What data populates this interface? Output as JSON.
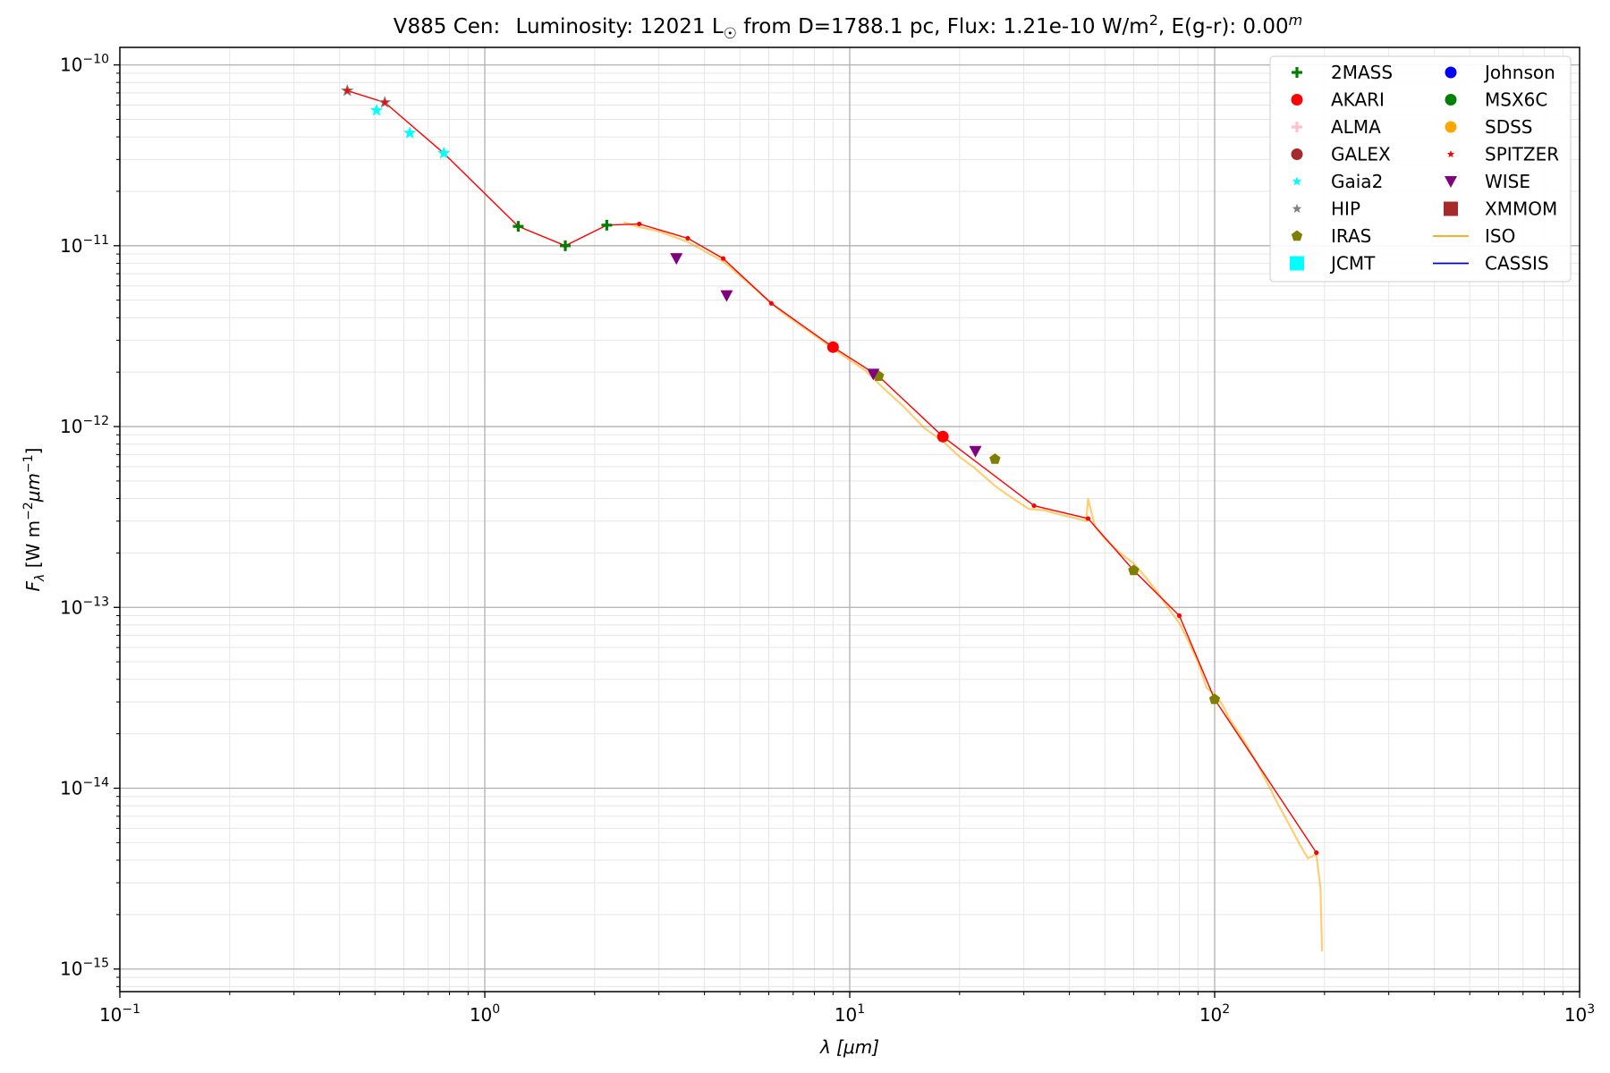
{
  "chart_data": {
    "type": "scatter",
    "title": {
      "star": "V885 Cen:",
      "lum_prefix": "Luminosity: 12021 L",
      "sun_symbol": "☉",
      "dist_flux": " from D=1788.1 pc, Flux: 1.21e-10 W/m",
      "flux_exp": "2",
      "ext": ", E(g-r): 0.00",
      "ext_sup": "m"
    },
    "xlabel": {
      "sym": "λ",
      "unit": " [μm]"
    },
    "ylabel": {
      "sym": "F",
      "sub": "λ",
      "unit": " [W m",
      "exp1": "−2",
      "mid": "μm",
      "exp2": "−1",
      "end": "]"
    },
    "xscale": "log",
    "yscale": "log",
    "xlim": [
      0.1,
      1000
    ],
    "ylim": [
      7.5e-16,
      1.25e-10
    ],
    "grid": true,
    "legend_position": "upper-right",
    "x_ticks": [
      {
        "value": 0.1,
        "base": "10",
        "exp": "−1"
      },
      {
        "value": 1,
        "base": "10",
        "exp": "0"
      },
      {
        "value": 10,
        "base": "10",
        "exp": "1"
      },
      {
        "value": 100,
        "base": "10",
        "exp": "2"
      },
      {
        "value": 1000,
        "base": "10",
        "exp": "3"
      }
    ],
    "y_ticks": [
      {
        "value": 1e-10,
        "base": "10",
        "exp": "−10"
      },
      {
        "value": 1e-11,
        "base": "10",
        "exp": "−11"
      },
      {
        "value": 1e-12,
        "base": "10",
        "exp": "−12"
      },
      {
        "value": 1e-13,
        "base": "10",
        "exp": "−13"
      },
      {
        "value": 1e-14,
        "base": "10",
        "exp": "−14"
      },
      {
        "value": 1e-15,
        "base": "10",
        "exp": "−15"
      }
    ],
    "legend": [
      {
        "name": "2MASS",
        "color": "#008000",
        "marker": "plus"
      },
      {
        "name": "AKARI",
        "color": "#ff0000",
        "marker": "circle"
      },
      {
        "name": "ALMA",
        "color": "#ffc0cb",
        "marker": "plus"
      },
      {
        "name": "GALEX",
        "color": "#a52a2a",
        "marker": "circle"
      },
      {
        "name": "Gaia2",
        "color": "#00ffff",
        "marker": "star"
      },
      {
        "name": "HIP",
        "color": "#808080",
        "marker": "star"
      },
      {
        "name": "IRAS",
        "color": "#808000",
        "marker": "pentagon"
      },
      {
        "name": "JCMT",
        "color": "#00ffff",
        "marker": "square"
      },
      {
        "name": "Johnson",
        "color": "#0000ff",
        "marker": "circle"
      },
      {
        "name": "MSX6C",
        "color": "#008000",
        "marker": "circle"
      },
      {
        "name": "SDSS",
        "color": "#ffa500",
        "marker": "circle"
      },
      {
        "name": "SPITZER",
        "color": "#ff0000",
        "marker": "star"
      },
      {
        "name": "WISE",
        "color": "#800080",
        "marker": "triangle-down"
      },
      {
        "name": "XMMOM",
        "color": "#a52a2a",
        "marker": "square"
      },
      {
        "name": "ISO",
        "color": "#ffa500",
        "marker": "line"
      },
      {
        "name": "CASSIS",
        "color": "#0000cc",
        "marker": "line"
      }
    ],
    "series": [
      {
        "name": "2MASS",
        "color": "#008000",
        "marker": "plus",
        "x": [
          1.235,
          1.662,
          2.159
        ],
        "y": [
          1.28e-11,
          1e-11,
          1.3e-11
        ]
      },
      {
        "name": "AKARI",
        "color": "#ff0000",
        "marker": "circle",
        "x": [
          9.0,
          18.0
        ],
        "y": [
          2.75e-12,
          8.8e-13
        ]
      },
      {
        "name": "Gaia2",
        "color": "#00ffff",
        "marker": "star",
        "x": [
          0.505,
          0.623,
          0.772
        ],
        "y": [
          5.6e-11,
          4.2e-11,
          3.25e-11
        ]
      },
      {
        "name": "HIP",
        "color": "#808080",
        "marker": "star",
        "x": [
          0.42,
          0.532
        ],
        "y": [
          7.2e-11,
          6.2e-11
        ]
      },
      {
        "name": "IRAS",
        "color": "#808000",
        "marker": "pentagon",
        "x": [
          12.0,
          25.0,
          60.0,
          100.0
        ],
        "y": [
          1.9e-12,
          6.6e-13,
          1.6e-13,
          3.1e-14
        ]
      },
      {
        "name": "WISE",
        "color": "#800080",
        "marker": "triangle-down",
        "x": [
          3.35,
          4.6,
          11.6,
          22.1
        ],
        "y": [
          8.5e-12,
          5.3e-12,
          1.95e-12,
          7.3e-13
        ]
      },
      {
        "name": "SPITZER",
        "color": "#ff0000",
        "marker": "star",
        "x": [
          0.42,
          0.532
        ],
        "y": [
          7.2e-11,
          6.2e-11
        ]
      }
    ],
    "sed_fit": {
      "color": "#ff0000",
      "x": [
        0.42,
        0.532,
        0.772,
        1.235,
        1.662,
        2.159,
        2.65,
        3.6,
        4.5,
        6.1,
        9.0,
        12.0,
        18.0,
        32.0,
        45.0,
        60.0,
        80.0,
        100.0,
        190.0
      ],
      "y": [
        7.2e-11,
        6.2e-11,
        3.25e-11,
        1.28e-11,
        1e-11,
        1.3e-11,
        1.32e-11,
        1.1e-11,
        8.5e-12,
        4.8e-12,
        2.75e-12,
        1.9e-12,
        8.8e-13,
        3.65e-13,
        3.1e-13,
        1.6e-13,
        9e-14,
        3.1e-14,
        4.4e-15
      ]
    },
    "iso_spectrum": {
      "color": "#ffa500",
      "x": [
        2.4,
        2.6,
        3.0,
        3.6,
        4.5,
        5.5,
        6.5,
        8.0,
        9.5,
        11.0,
        12.5,
        14.0,
        16.0,
        18.0,
        20.0,
        22.0,
        25.0,
        28.0,
        31.0,
        34.0,
        38.0,
        42.0,
        44.5,
        45.0,
        47.0,
        50.0,
        55.0,
        60.0,
        65.0,
        70.0,
        75.0,
        80.0,
        85.0,
        90.0,
        95.0,
        100.0,
        105.0,
        110.0,
        120.0,
        130.0,
        140.0,
        150.0,
        160.0,
        170.0,
        180.0,
        190.0,
        195.0,
        197.0
      ],
      "y": [
        1.35e-11,
        1.28e-11,
        1.2e-11,
        1.05e-11,
        8.2e-12,
        5.8e-12,
        4.3e-12,
        3.2e-12,
        2.5e-12,
        2.05e-12,
        1.6e-12,
        1.3e-12,
        9.8e-13,
        8.3e-13,
        6.8e-13,
        5.9e-13,
        4.7e-13,
        4e-13,
        3.5e-13,
        3.45e-13,
        3.25e-13,
        3.1e-13,
        3e-13,
        4e-13,
        2.8e-13,
        2.4e-13,
        2e-13,
        1.75e-13,
        1.45e-13,
        1.2e-13,
        9.8e-14,
        8.2e-14,
        6.4e-14,
        5e-14,
        3.6e-14,
        3.3e-14,
        2.9e-14,
        2.4e-14,
        1.85e-14,
        1.4e-14,
        1.05e-14,
        8e-15,
        6.3e-15,
        5e-15,
        4.1e-15,
        4.3e-15,
        2.8e-15,
        1.25e-15
      ]
    }
  }
}
